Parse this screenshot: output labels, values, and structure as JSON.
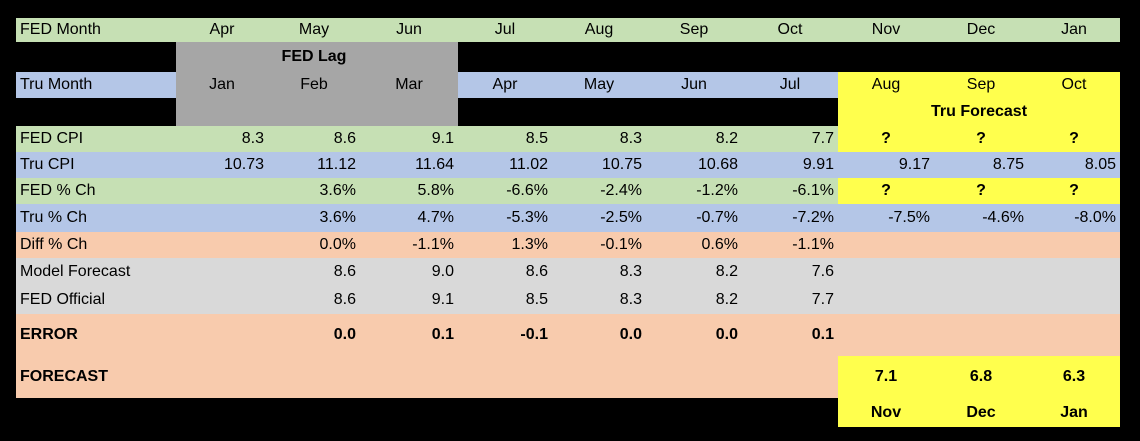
{
  "fed_month": {
    "label": "FED Month",
    "months": [
      "Apr",
      "May",
      "Jun",
      "Jul",
      "Aug",
      "Sep",
      "Oct",
      "Nov",
      "Dec",
      "Jan"
    ]
  },
  "fed_lag": {
    "label": "FED Lag"
  },
  "tru_month": {
    "label": "Tru Month",
    "months": [
      "Jan",
      "Feb",
      "Mar",
      "Apr",
      "May",
      "Jun",
      "Jul",
      "Aug",
      "Sep",
      "Oct"
    ]
  },
  "tru_forecast": {
    "label": "Tru Forecast"
  },
  "rows": [
    {
      "label": "FED CPI",
      "values": [
        "8.3",
        "8.6",
        "9.1",
        "8.5",
        "8.3",
        "8.2",
        "7.7",
        "?",
        "?",
        "?"
      ]
    },
    {
      "label": "Tru CPI",
      "values": [
        "10.73",
        "11.12",
        "11.64",
        "11.02",
        "10.75",
        "10.68",
        "9.91",
        "9.17",
        "8.75",
        "8.05"
      ]
    },
    {
      "label": "FED % Ch",
      "values": [
        "",
        "3.6%",
        "5.8%",
        "-6.6%",
        "-2.4%",
        "-1.2%",
        "-6.1%",
        "?",
        "?",
        "?"
      ]
    },
    {
      "label": "Tru % Ch",
      "values": [
        "",
        "3.6%",
        "4.7%",
        "-5.3%",
        "-2.5%",
        "-0.7%",
        "-7.2%",
        "-7.5%",
        "-4.6%",
        "-8.0%"
      ]
    },
    {
      "label": "Diff % Ch",
      "values": [
        "",
        "0.0%",
        "-1.1%",
        "1.3%",
        "-0.1%",
        "0.6%",
        "-1.1%",
        "",
        "",
        ""
      ]
    },
    {
      "label": "Model Forecast",
      "values": [
        "",
        "8.6",
        "9.0",
        "8.6",
        "8.3",
        "8.2",
        "7.6",
        "",
        "",
        ""
      ]
    },
    {
      "label": "FED Official",
      "values": [
        "",
        "8.6",
        "9.1",
        "8.5",
        "8.3",
        "8.2",
        "7.7",
        "",
        "",
        ""
      ]
    },
    {
      "label": "ERROR",
      "values": [
        "",
        "0.0",
        "0.1",
        "-0.1",
        "0.0",
        "0.0",
        "0.1",
        "",
        "",
        ""
      ]
    }
  ],
  "forecast": {
    "label": "FORECAST",
    "values": [
      "7.1",
      "6.8",
      "6.3"
    ],
    "months": [
      "Nov",
      "Dec",
      "Jan"
    ]
  },
  "colors": {
    "green": "#c6e0b4",
    "blue": "#b4c6e7",
    "salmon": "#f8cbad",
    "grey": "#d9d9d9",
    "lag_grey": "#a6a6a6",
    "yellow": "#ffff4d",
    "background": "#000000"
  }
}
